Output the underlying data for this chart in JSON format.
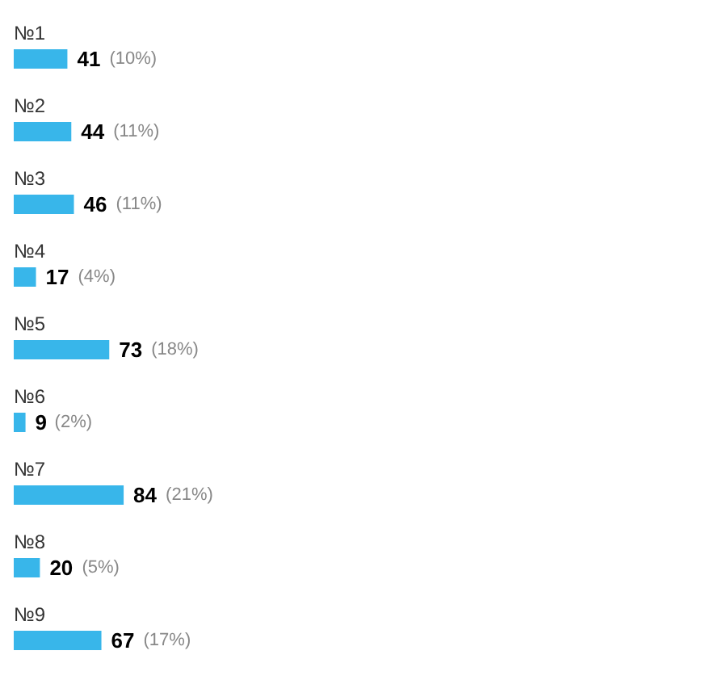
{
  "chart_data": {
    "type": "bar",
    "orientation": "horizontal",
    "categories": [
      "№1",
      "№2",
      "№3",
      "№4",
      "№5",
      "№6",
      "№7",
      "№8",
      "№9"
    ],
    "values": [
      41,
      44,
      46,
      17,
      73,
      9,
      84,
      20,
      67
    ],
    "data_labels": true,
    "annotations": [
      {
        "text": "(10%)",
        "x": 41,
        "y": "№1"
      },
      {
        "text": "(11%)",
        "x": 44,
        "y": "№2"
      },
      {
        "text": "(11%)",
        "x": 46,
        "y": "№3"
      },
      {
        "text": "(4%)",
        "x": 17,
        "y": "№4"
      },
      {
        "text": "(18%)",
        "x": 73,
        "y": "№5"
      },
      {
        "text": "(2%)",
        "x": 9,
        "y": "№6"
      },
      {
        "text": "(21%)",
        "x": 84,
        "y": "№7"
      },
      {
        "text": "(5%)",
        "x": 20,
        "y": "№8"
      },
      {
        "text": "(17%)",
        "x": 67,
        "y": "№9"
      }
    ],
    "color": "#38b6ea",
    "grid": false
  }
}
